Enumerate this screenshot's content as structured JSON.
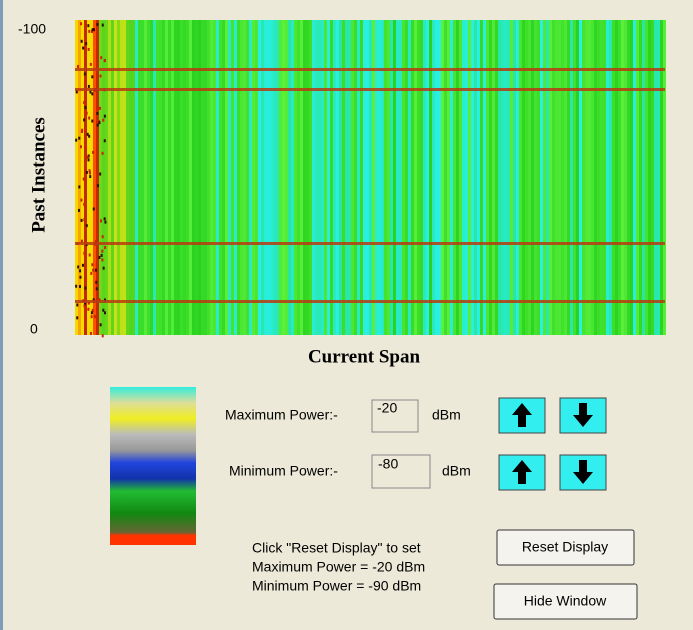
{
  "waterfall": {
    "y_axis_label": "Past Instances",
    "y_top_label": "-100",
    "y_bottom_label": "0",
    "x_axis_label": "Current Span"
  },
  "controls": {
    "max_power": {
      "label": "Maximum Power:-",
      "value": "-20",
      "unit": "dBm"
    },
    "min_power": {
      "label": "Minimum Power:-",
      "value": "-80",
      "unit": "dBm"
    }
  },
  "note": {
    "lines": [
      "Click \"Reset Display\" to set",
      "Maximum Power = -20 dBm",
      "Minimum Power = -90 dBm"
    ]
  },
  "buttons": {
    "reset": "Reset Display",
    "hide": "Hide Window"
  }
}
